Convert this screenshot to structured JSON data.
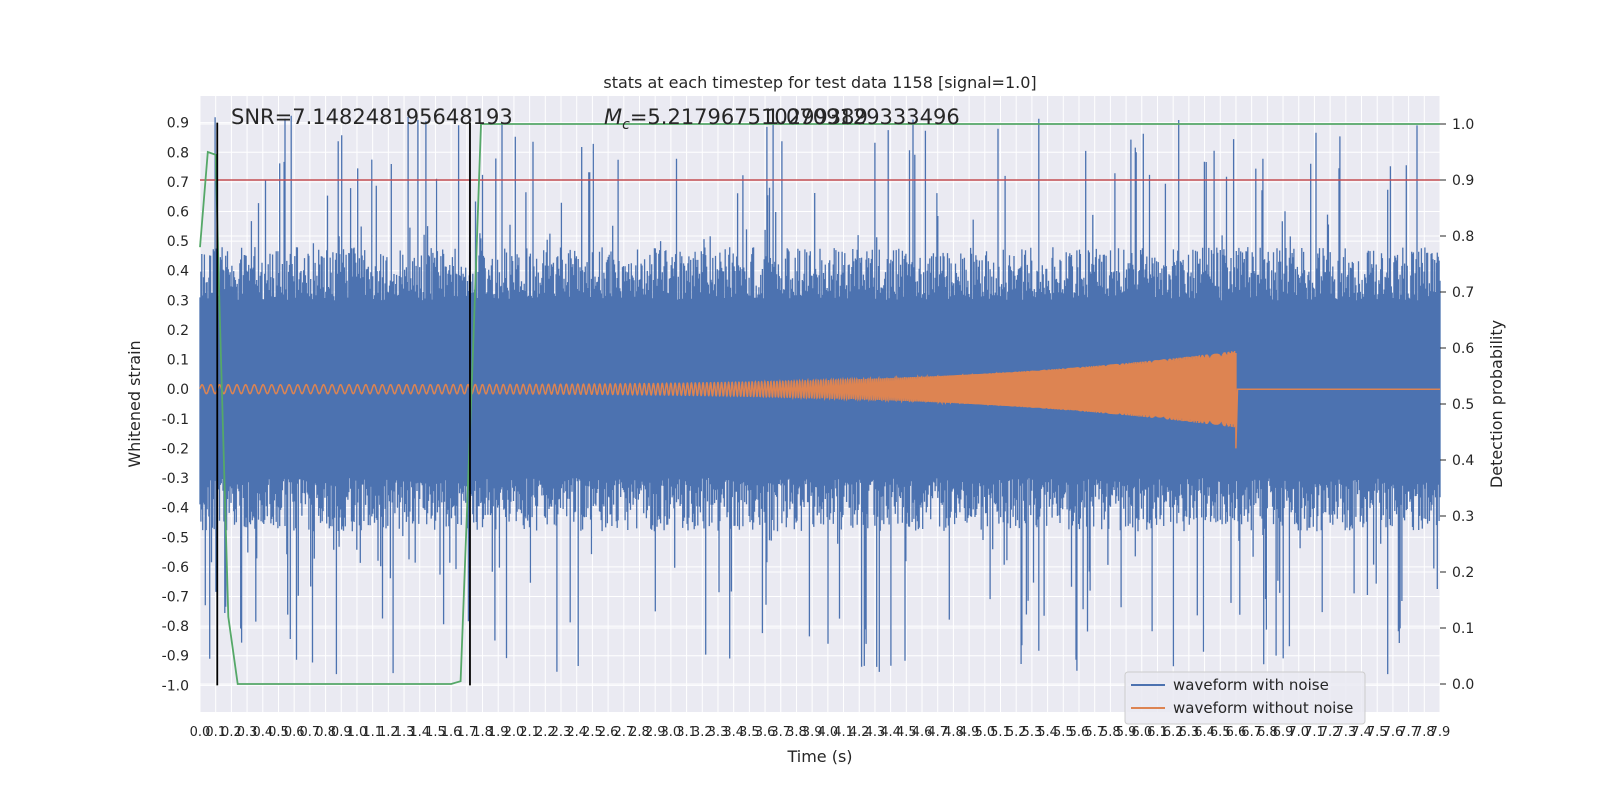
{
  "chart_data": {
    "type": "line",
    "title": "stats at each timestep for test data 1158 [signal=1.0]",
    "xlabel": "Time (s)",
    "ylabel_left": "Whitened strain",
    "ylabel_right": "Detection probability",
    "xlim": [
      0.0,
      7.9
    ],
    "ylim_left": [
      -1.09,
      0.99
    ],
    "ylim_right": [
      -0.05,
      1.05
    ],
    "x_ticks": [
      0.0,
      0.1,
      0.2,
      0.3,
      0.4,
      0.5,
      0.6,
      0.7,
      0.8,
      0.9,
      1.0,
      1.1,
      1.2,
      1.3,
      1.4,
      1.5,
      1.6,
      1.7,
      1.8,
      1.9,
      2.0,
      2.1,
      2.2,
      2.3,
      2.4,
      2.5,
      2.6,
      2.7,
      2.8,
      2.9,
      3.0,
      3.1,
      3.2,
      3.3,
      3.4,
      3.5,
      3.6,
      3.7,
      3.8,
      3.9,
      4.0,
      4.1,
      4.2,
      4.3,
      4.4,
      4.5,
      4.6,
      4.7,
      4.8,
      4.9,
      5.0,
      5.1,
      5.2,
      5.3,
      5.4,
      5.5,
      5.6,
      5.7,
      5.8,
      5.9,
      6.0,
      6.1,
      6.2,
      6.3,
      6.4,
      6.5,
      6.6,
      6.7,
      6.8,
      6.9,
      7.0,
      7.1,
      7.2,
      7.3,
      7.4,
      7.5,
      7.6,
      7.7,
      7.8,
      7.9
    ],
    "y_ticks_left": [
      -1.0,
      -0.9,
      -0.8,
      -0.7,
      -0.6,
      -0.5,
      -0.4,
      -0.3,
      -0.2,
      -0.1,
      0.0,
      0.1,
      0.2,
      0.3,
      0.4,
      0.5,
      0.6,
      0.7,
      0.8,
      0.9
    ],
    "y_ticks_right": [
      0.0,
      0.1,
      0.2,
      0.3,
      0.4,
      0.5,
      0.6,
      0.7,
      0.8,
      0.9,
      1.0
    ],
    "annotations": {
      "snr": "SNR=7.148248195648193",
      "mc_symbol": "M",
      "mc_sub": "c",
      "mc_value": "=5.217967510299389",
      "overlap": "1.0709129333496"
    },
    "threshold_right": 0.9,
    "vertical_lines_x": [
      0.11,
      1.72
    ],
    "detection_probability": {
      "x": [
        0.0,
        0.05,
        0.1,
        0.12,
        0.18,
        0.24,
        1.6,
        1.66,
        1.7,
        1.74,
        1.79,
        7.9
      ],
      "y": [
        0.78,
        0.95,
        0.945,
        0.72,
        0.12,
        0.0,
        0.0,
        0.005,
        0.3,
        0.6,
        1.0,
        1.0
      ]
    },
    "noise_envelope": {
      "base_min": -0.3,
      "base_max": 0.3,
      "peak_amplitude": 0.93
    },
    "signal": {
      "end_time": 6.6,
      "amp_start": 0.015,
      "amp_end": 0.13,
      "freq_start": 18,
      "freq_end": 220
    },
    "series": [
      {
        "name": "waveform with noise",
        "color": "#4c72b0"
      },
      {
        "name": "waveform without noise",
        "color": "#dd8452"
      }
    ],
    "prob_color": "#55a868",
    "threshold_color": "#c44e52",
    "vline_color": "#000000",
    "grid": true,
    "legend_position": "bottom-right"
  }
}
